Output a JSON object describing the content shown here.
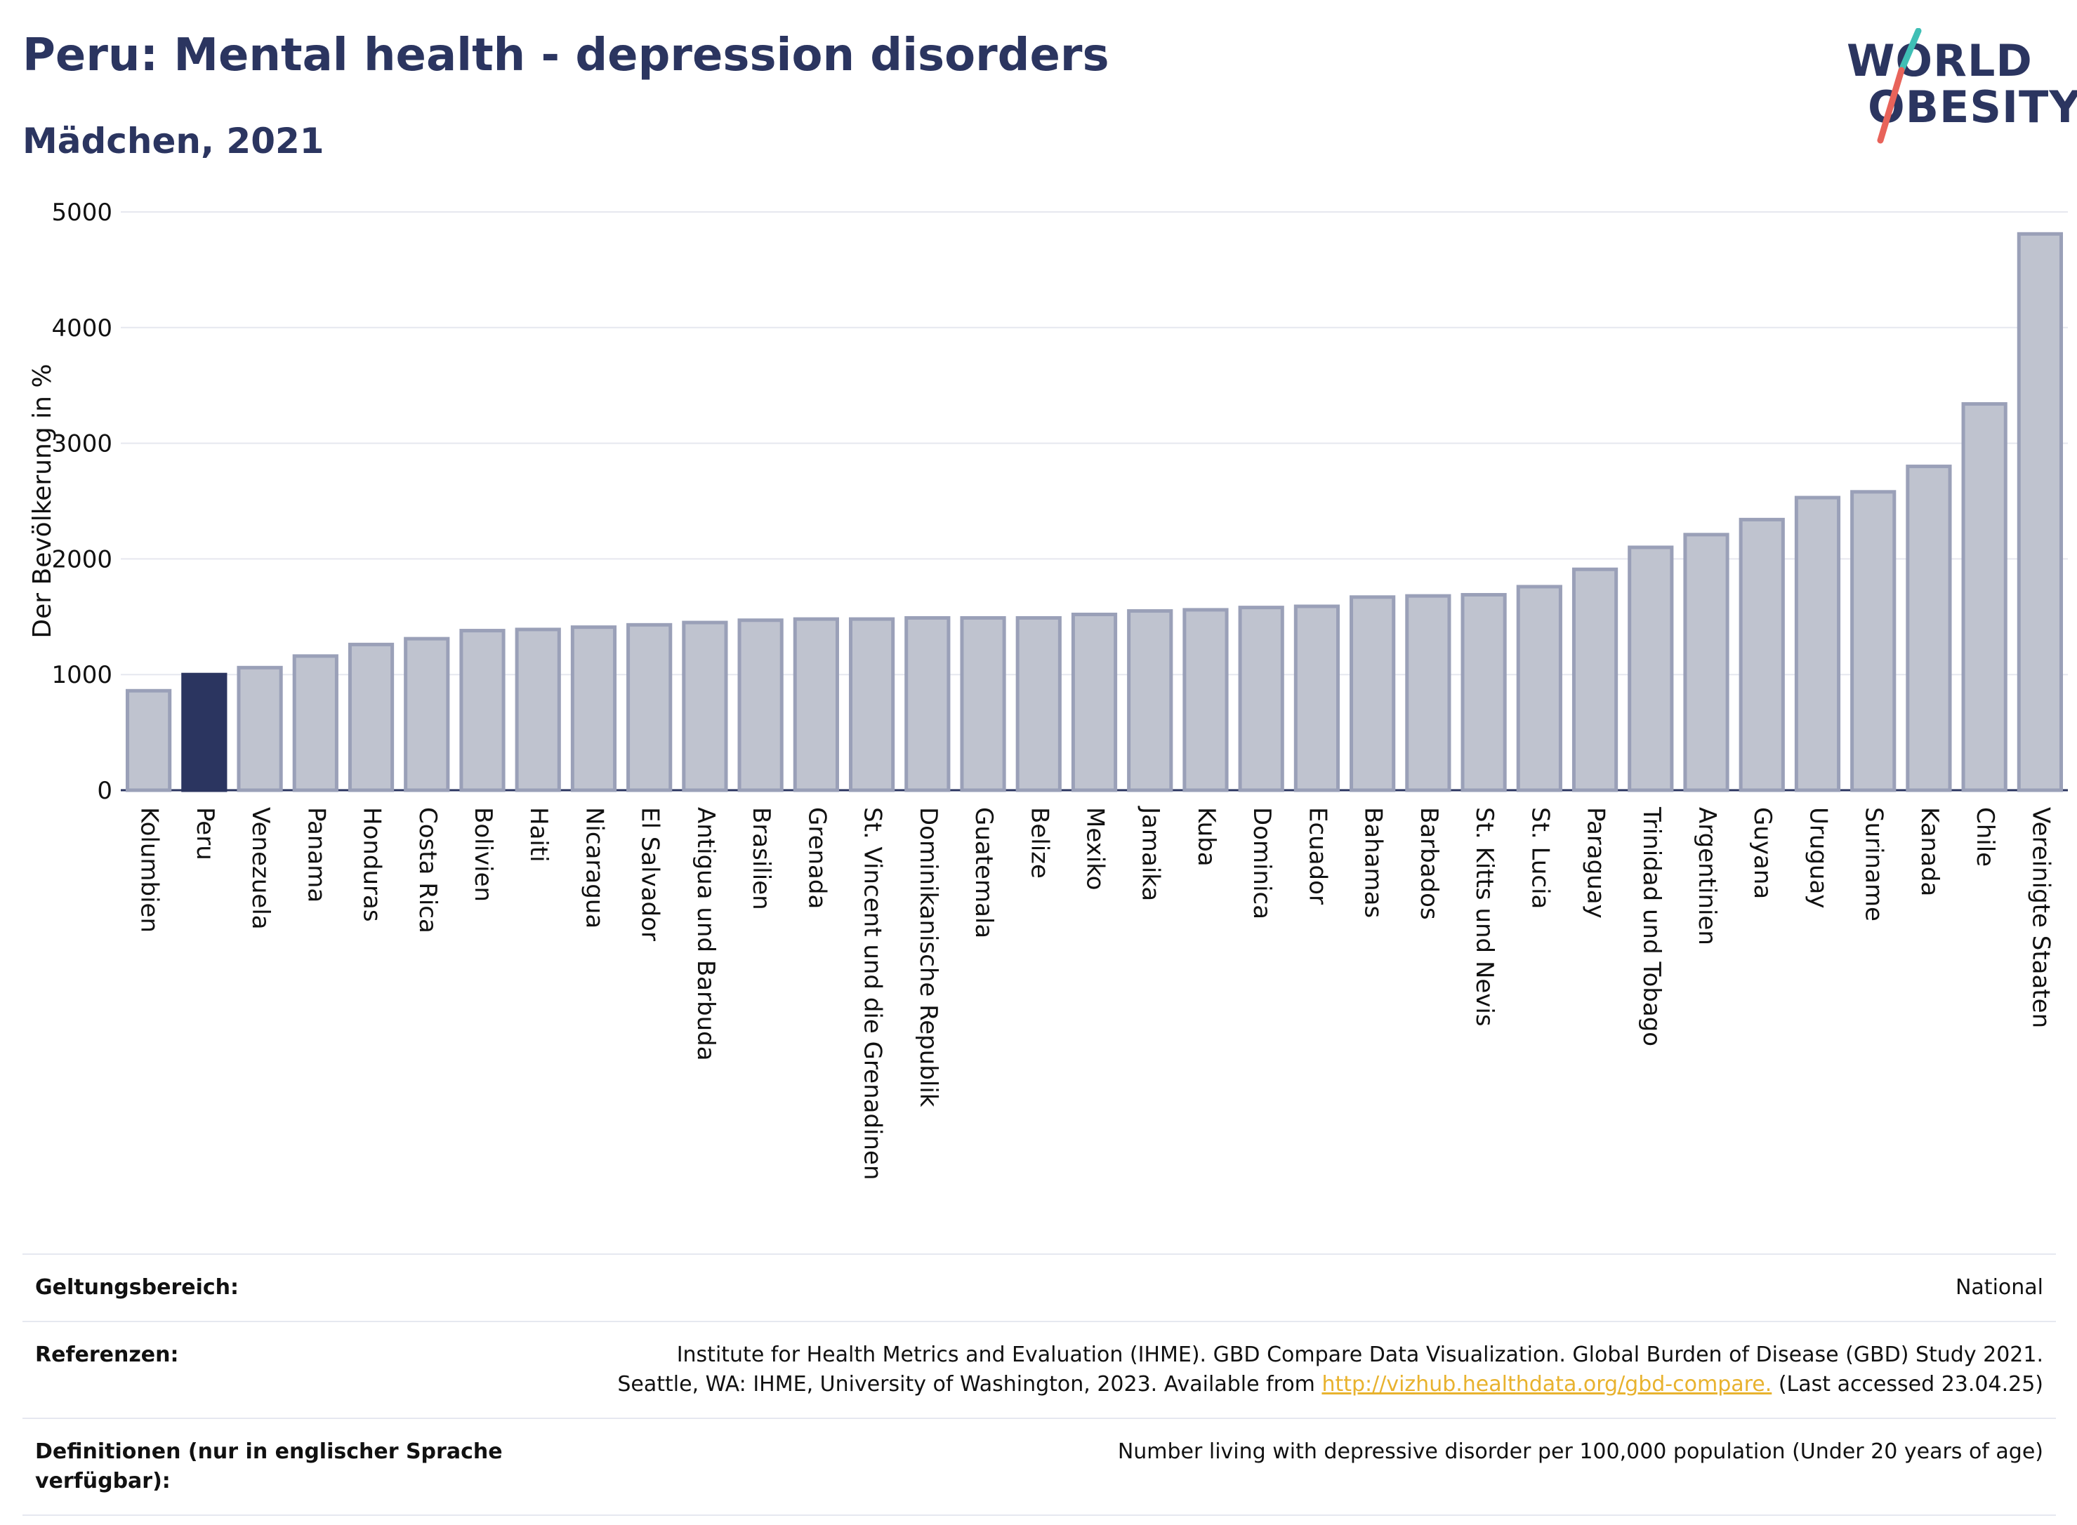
{
  "header": {
    "title": "Peru: Mental health - depression disorders",
    "subtitle": "Mädchen, 2021"
  },
  "logo": {
    "line1": "WORLD",
    "line2": "OBESITY",
    "accent_teal": "#3fbfb5",
    "accent_red": "#e8635a"
  },
  "colors": {
    "highlight": "#2b3560",
    "bar_fill": "#bfc3cf",
    "bar_stroke": "#9aa0b8",
    "grid": "#e6e8ef"
  },
  "chart_data": {
    "type": "bar",
    "ylabel": "Der Bevölkerung in %",
    "ylim": [
      0,
      5000
    ],
    "yticks": [
      0,
      1000,
      2000,
      3000,
      4000,
      5000
    ],
    "highlight": "Peru",
    "categories": [
      "Kolumbien",
      "Peru",
      "Venezuela",
      "Panama",
      "Honduras",
      "Costa Rica",
      "Bolivien",
      "Haiti",
      "Nicaragua",
      "El Salvador",
      "Antigua und Barbuda",
      "Brasilien",
      "Grenada",
      "St. Vincent und die Grenadinen",
      "Dominikanische Republik",
      "Guatemala",
      "Belize",
      "Mexiko",
      "Jamaika",
      "Kuba",
      "Dominica",
      "Ecuador",
      "Bahamas",
      "Barbados",
      "St. Kitts und Nevis",
      "St. Lucia",
      "Paraguay",
      "Trinidad und Tobago",
      "Argentinien",
      "Guyana",
      "Uruguay",
      "Suriname",
      "Kanada",
      "Chile",
      "Vereinigte Staaten"
    ],
    "values": [
      860,
      1000,
      1060,
      1160,
      1260,
      1310,
      1380,
      1390,
      1410,
      1430,
      1450,
      1470,
      1480,
      1480,
      1490,
      1490,
      1490,
      1520,
      1550,
      1560,
      1580,
      1590,
      1670,
      1680,
      1690,
      1760,
      1910,
      2100,
      2210,
      2340,
      2530,
      2580,
      2800,
      3340,
      4810
    ]
  },
  "footer": {
    "scope_label": "Geltungsbereich:",
    "scope_value": "National",
    "ref_label": "Referenzen:",
    "ref_line1": "Institute for Health Metrics and Evaluation (IHME). GBD Compare Data Visualization. Global Burden of Disease (GBD) Study 2021.",
    "ref_line2_pre": "Seattle, WA: IHME, University of Washington, 2023. Available from ",
    "ref_link": "http://vizhub.healthdata.org/gbd-compare.",
    "ref_line2_post": " (Last accessed 23.04.25)",
    "def_label": "Definitionen (nur in englischer Sprache verfügbar):",
    "def_value": "Number living with depressive disorder per 100,000 population (Under 20 years of age)"
  }
}
